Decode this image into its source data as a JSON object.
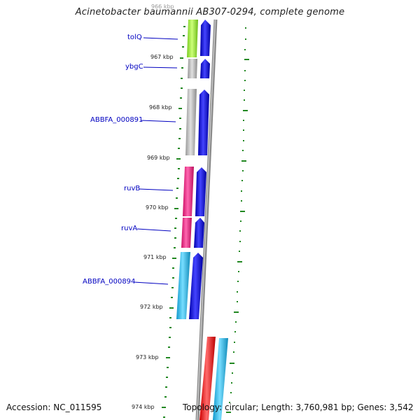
{
  "title": "Acinetobacter baumannii AB307-0294, complete genome",
  "footer": {
    "accession": "Accession: NC_011595",
    "topology": "Topology: circular; Length: 3,760,981 bp; Genes: 3,542"
  },
  "scale_labels": [
    "966 kbp",
    "967 kbp",
    "968 kbp",
    "969 kbp",
    "970 kbp",
    "971 kbp",
    "972 kbp",
    "973 kbp",
    "974 kbp"
  ],
  "genes": [
    {
      "name": "tolQ",
      "color": "#99ee33"
    },
    {
      "name": "ybgC",
      "color": "#b5b5b5"
    },
    {
      "name": "ABBFA_000891",
      "color": "#b5b5b5"
    },
    {
      "name": "ruvB",
      "color": "#ee2288"
    },
    {
      "name": "ruvA",
      "color": "#ee2288"
    },
    {
      "name": "ABBFA_000894",
      "color": "#22bbee"
    },
    {
      "name": "",
      "color": "#ff1111"
    },
    {
      "name": "",
      "color": "#22bbee"
    }
  ],
  "colors": {
    "cds_strand": "#0000dd",
    "backbone": "#8a8a8a",
    "gc_dots": "#228822",
    "label_text": "#0000c0"
  }
}
